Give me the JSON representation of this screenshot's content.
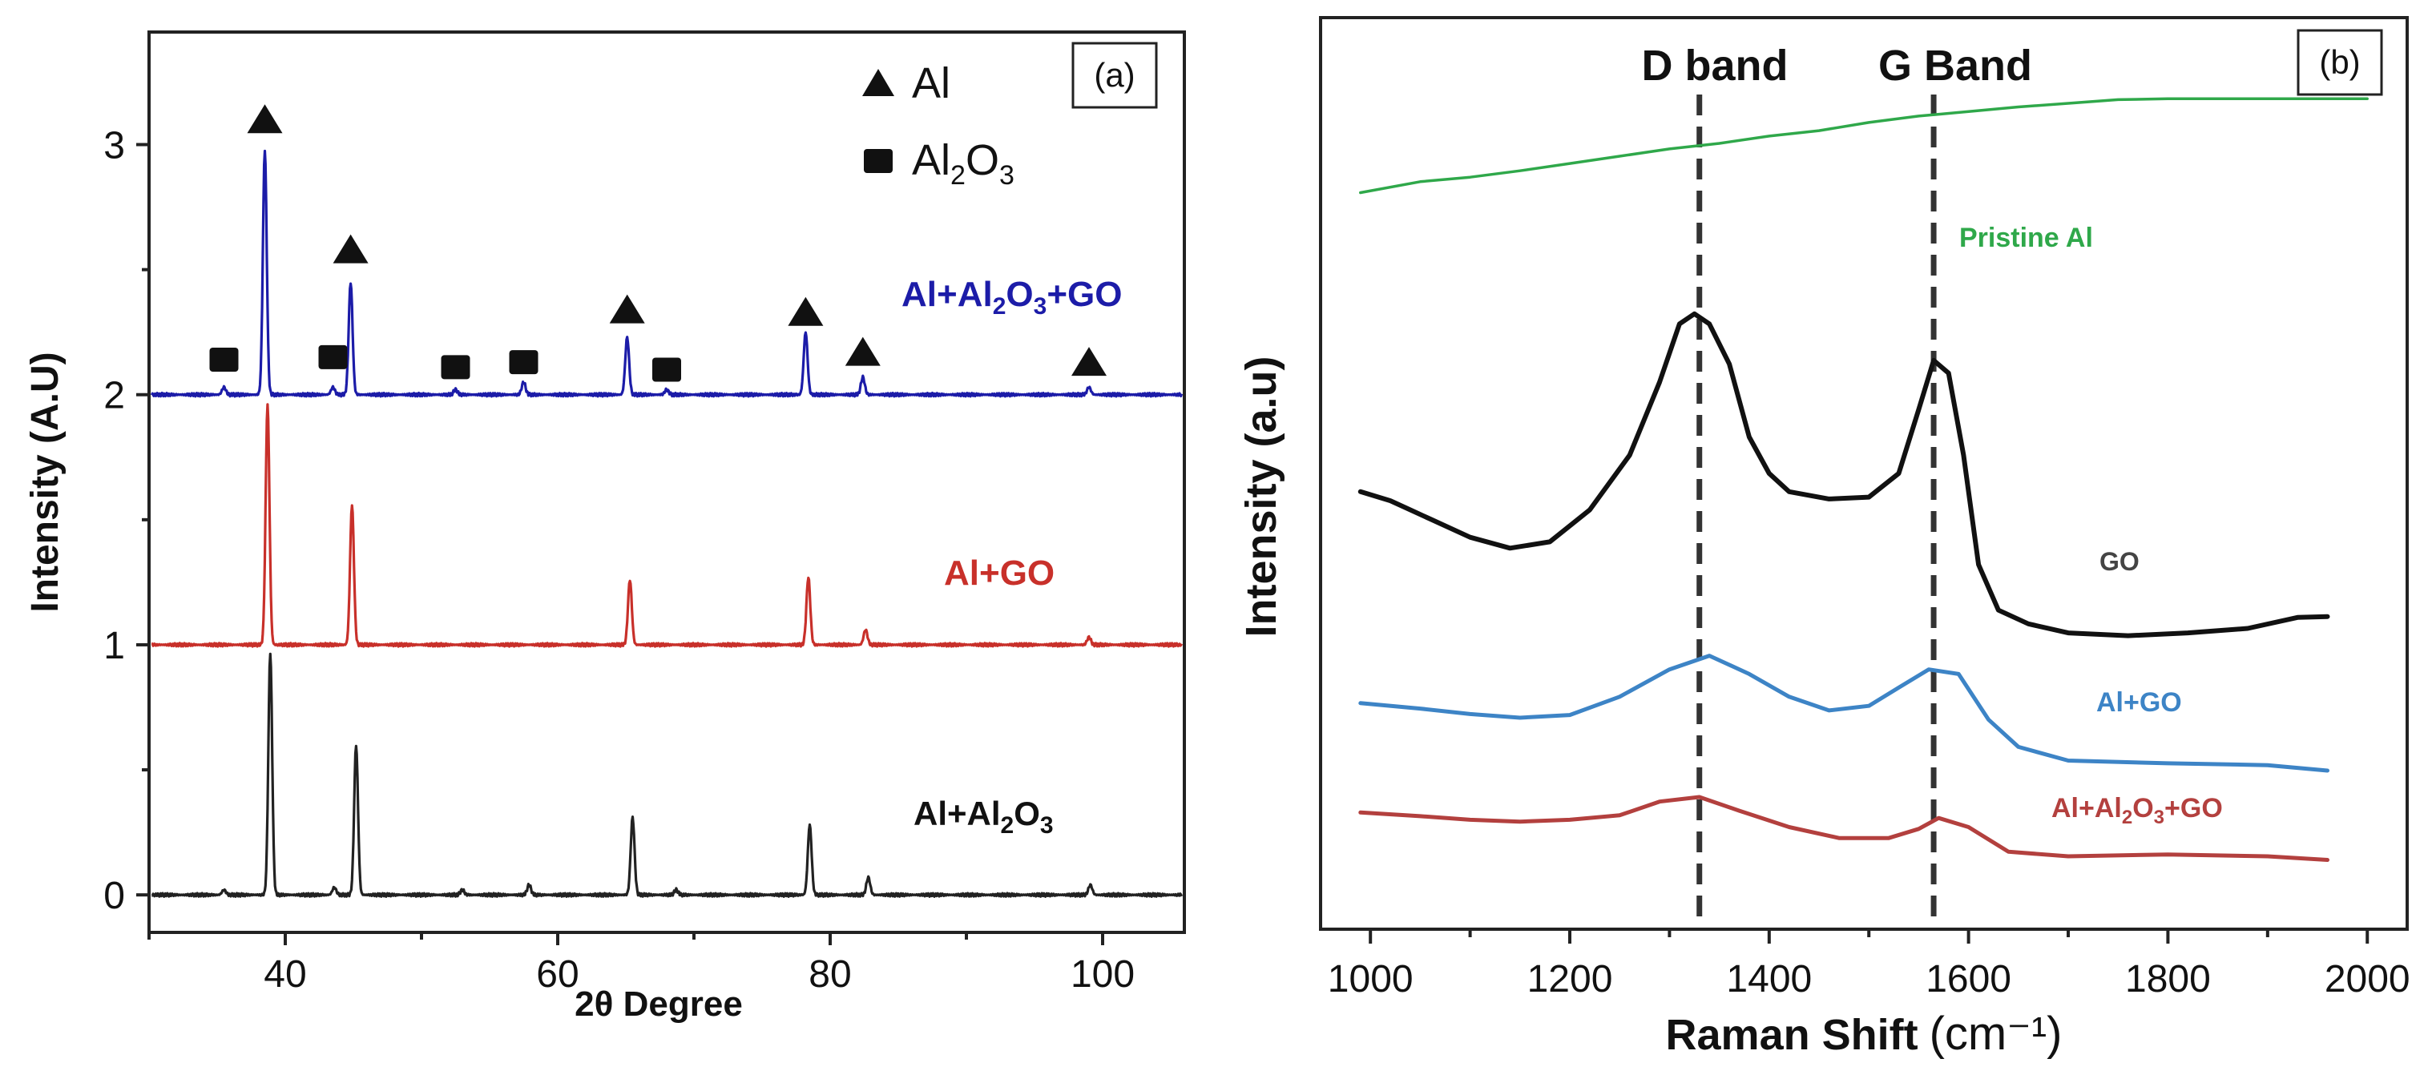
{
  "chart_data": [
    {
      "panel_label": "(a)",
      "type": "line",
      "xlabel": "2θ Degree",
      "ylabel": "Intensity (A.U)",
      "xlim": [
        30,
        106
      ],
      "ylim": [
        -0.15,
        3.45
      ],
      "xticks": [
        "40",
        "60",
        "80",
        "100"
      ],
      "yticks": [
        "0",
        "1",
        "2",
        "3"
      ],
      "legend": [
        {
          "marker": "triangle",
          "label": "Al"
        },
        {
          "marker": "square",
          "label": "Al",
          "sub": "2",
          "mid": "O",
          "sub2": "3"
        }
      ],
      "legend_position": "top-right",
      "series": [
        {
          "label_main": "Al+Al",
          "label_sub": "2",
          "label_mid": "O",
          "label_sub2": "3",
          "label_tail": "+GO",
          "color": "#1c1ca8",
          "baseline": 2.0,
          "peaks": [
            [
              35.5,
              0.03
            ],
            [
              38.5,
              0.98
            ],
            [
              43.5,
              0.03
            ],
            [
              44.8,
              0.45
            ],
            [
              52.5,
              0.02
            ],
            [
              57.5,
              0.05
            ],
            [
              65.1,
              0.23
            ],
            [
              68.0,
              0.02
            ],
            [
              78.2,
              0.25
            ],
            [
              82.4,
              0.07
            ],
            [
              99.0,
              0.03
            ]
          ]
        },
        {
          "label_main": "Al+GO",
          "label_sub": "",
          "label_mid": "",
          "label_sub2": "",
          "label_tail": "",
          "color": "#c8302a",
          "baseline": 1.0,
          "peaks": [
            [
              38.7,
              0.96
            ],
            [
              44.9,
              0.56
            ],
            [
              65.3,
              0.26
            ],
            [
              78.4,
              0.27
            ],
            [
              82.6,
              0.06
            ],
            [
              99.0,
              0.03
            ]
          ]
        },
        {
          "label_main": "Al+Al",
          "label_sub": "2",
          "label_mid": "O",
          "label_sub2": "3",
          "label_tail": "",
          "color": "#222222",
          "baseline": 0.0,
          "peaks": [
            [
              35.5,
              0.02
            ],
            [
              38.9,
              0.97
            ],
            [
              43.6,
              0.03
            ],
            [
              45.2,
              0.6
            ],
            [
              53.0,
              0.02
            ],
            [
              57.9,
              0.04
            ],
            [
              65.5,
              0.31
            ],
            [
              68.7,
              0.02
            ],
            [
              78.5,
              0.28
            ],
            [
              82.8,
              0.07
            ],
            [
              99.1,
              0.04
            ]
          ]
        }
      ],
      "markers": [
        {
          "shape": "triangle",
          "x": 38.5,
          "y": 3.1
        },
        {
          "shape": "triangle",
          "x": 44.8,
          "y": 2.58
        },
        {
          "shape": "triangle",
          "x": 65.1,
          "y": 2.34
        },
        {
          "shape": "triangle",
          "x": 78.2,
          "y": 2.33
        },
        {
          "shape": "triangle",
          "x": 82.4,
          "y": 2.17
        },
        {
          "shape": "triangle",
          "x": 99.0,
          "y": 2.13
        },
        {
          "shape": "square",
          "x": 35.5,
          "y": 2.14
        },
        {
          "shape": "square",
          "x": 43.5,
          "y": 2.15
        },
        {
          "shape": "square",
          "x": 52.5,
          "y": 2.11
        },
        {
          "shape": "square",
          "x": 57.5,
          "y": 2.13
        },
        {
          "shape": "square",
          "x": 68.0,
          "y": 2.1
        }
      ]
    },
    {
      "panel_label": "(b)",
      "type": "line",
      "xlabel": "Raman Shift",
      "xunit": "(cm⁻¹)",
      "ylabel": "Intensity (a.u)",
      "xlim": [
        950,
        2040
      ],
      "ylim": [
        0,
        1
      ],
      "xticks": [
        "1000",
        "1200",
        "1400",
        "1600",
        "1800",
        "2000"
      ],
      "bands": [
        {
          "label": "D band",
          "x": 1330
        },
        {
          "label": "G Band",
          "x": 1565
        }
      ],
      "series": [
        {
          "label": "Pristine Al",
          "color": "#2fa84a",
          "points": [
            [
              990,
              0.808
            ],
            [
              1050,
              0.82
            ],
            [
              1100,
              0.825
            ],
            [
              1150,
              0.832
            ],
            [
              1200,
              0.84
            ],
            [
              1250,
              0.848
            ],
            [
              1300,
              0.856
            ],
            [
              1350,
              0.862
            ],
            [
              1400,
              0.87
            ],
            [
              1450,
              0.876
            ],
            [
              1500,
              0.885
            ],
            [
              1550,
              0.892
            ],
            [
              1600,
              0.897
            ],
            [
              1650,
              0.902
            ],
            [
              1700,
              0.906
            ],
            [
              1750,
              0.91
            ],
            [
              1800,
              0.911
            ],
            [
              1850,
              0.911
            ],
            [
              2000,
              0.911
            ]
          ]
        },
        {
          "label": "GO",
          "color": "#111111",
          "points": [
            [
              990,
              0.48
            ],
            [
              1020,
              0.47
            ],
            [
              1060,
              0.45
            ],
            [
              1100,
              0.43
            ],
            [
              1140,
              0.418
            ],
            [
              1180,
              0.425
            ],
            [
              1220,
              0.46
            ],
            [
              1260,
              0.52
            ],
            [
              1290,
              0.6
            ],
            [
              1310,
              0.664
            ],
            [
              1325,
              0.675
            ],
            [
              1340,
              0.664
            ],
            [
              1360,
              0.62
            ],
            [
              1380,
              0.54
            ],
            [
              1400,
              0.5
            ],
            [
              1420,
              0.48
            ],
            [
              1460,
              0.472
            ],
            [
              1500,
              0.474
            ],
            [
              1530,
              0.5
            ],
            [
              1550,
              0.57
            ],
            [
              1565,
              0.624
            ],
            [
              1580,
              0.61
            ],
            [
              1595,
              0.52
            ],
            [
              1610,
              0.4
            ],
            [
              1630,
              0.35
            ],
            [
              1660,
              0.335
            ],
            [
              1700,
              0.325
            ],
            [
              1760,
              0.322
            ],
            [
              1820,
              0.325
            ],
            [
              1880,
              0.33
            ],
            [
              1930,
              0.342
            ],
            [
              1960,
              0.343
            ]
          ]
        },
        {
          "label": "Al+GO",
          "color": "#3d84c6",
          "points": [
            [
              990,
              0.248
            ],
            [
              1050,
              0.242
            ],
            [
              1100,
              0.236
            ],
            [
              1150,
              0.232
            ],
            [
              1200,
              0.235
            ],
            [
              1250,
              0.255
            ],
            [
              1300,
              0.285
            ],
            [
              1340,
              0.3
            ],
            [
              1380,
              0.28
            ],
            [
              1420,
              0.255
            ],
            [
              1460,
              0.24
            ],
            [
              1500,
              0.245
            ],
            [
              1530,
              0.265
            ],
            [
              1560,
              0.285
            ],
            [
              1590,
              0.28
            ],
            [
              1620,
              0.23
            ],
            [
              1650,
              0.2
            ],
            [
              1700,
              0.185
            ],
            [
              1800,
              0.182
            ],
            [
              1900,
              0.18
            ],
            [
              1960,
              0.174
            ]
          ]
        },
        {
          "label_main": "Al+Al",
          "label_sub": "2",
          "label_mid": "O",
          "label_sub2": "3",
          "label_tail": "+GO",
          "color": "#b3403e",
          "points": [
            [
              990,
              0.128
            ],
            [
              1050,
              0.124
            ],
            [
              1100,
              0.12
            ],
            [
              1150,
              0.118
            ],
            [
              1200,
              0.12
            ],
            [
              1250,
              0.125
            ],
            [
              1290,
              0.14
            ],
            [
              1330,
              0.145
            ],
            [
              1370,
              0.13
            ],
            [
              1420,
              0.112
            ],
            [
              1470,
              0.1
            ],
            [
              1520,
              0.1
            ],
            [
              1550,
              0.11
            ],
            [
              1570,
              0.122
            ],
            [
              1600,
              0.112
            ],
            [
              1640,
              0.085
            ],
            [
              1700,
              0.08
            ],
            [
              1800,
              0.082
            ],
            [
              1900,
              0.08
            ],
            [
              1960,
              0.076
            ]
          ]
        }
      ]
    }
  ]
}
